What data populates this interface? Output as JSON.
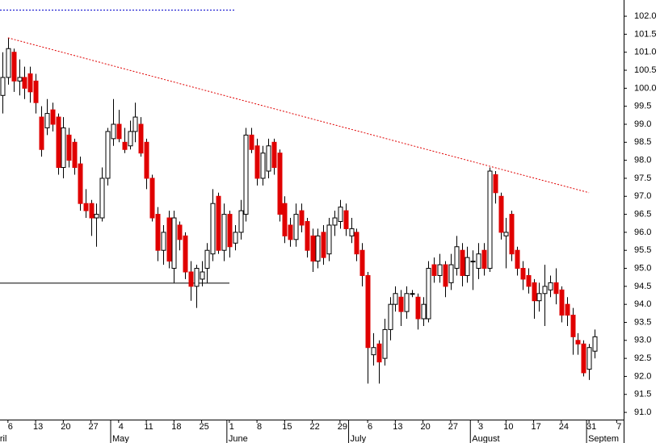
{
  "chart_data": {
    "type": "candlestick",
    "ylim": [
      90.8,
      102.45
    ],
    "yticks": [
      {
        "value": 91,
        "label": "91.0"
      },
      {
        "value": 91.5,
        "label": "91.5"
      },
      {
        "value": 92,
        "label": "92.0"
      },
      {
        "value": 92.5,
        "label": "92.5"
      },
      {
        "value": 93,
        "label": "93.0"
      },
      {
        "value": 93.5,
        "label": "93.5"
      },
      {
        "value": 94,
        "label": "94.0"
      },
      {
        "value": 94.5,
        "label": "94.5"
      },
      {
        "value": 95,
        "label": "95.0"
      },
      {
        "value": 95.5,
        "label": "95.5"
      },
      {
        "value": 96,
        "label": "96.0"
      },
      {
        "value": 96.5,
        "label": "96.5"
      },
      {
        "value": 97,
        "label": "97.0"
      },
      {
        "value": 97.5,
        "label": "97.5"
      },
      {
        "value": 98,
        "label": "98.0"
      },
      {
        "value": 98.5,
        "label": "98.5"
      },
      {
        "value": 99,
        "label": "99.0"
      },
      {
        "value": 99.5,
        "label": "99.5"
      },
      {
        "value": 100,
        "label": "100.0"
      },
      {
        "value": 100.5,
        "label": "100.5"
      },
      {
        "value": 101,
        "label": "101.0"
      },
      {
        "value": 101.5,
        "label": "101.5"
      },
      {
        "value": 102,
        "label": "102.0"
      }
    ],
    "categories": [
      null,
      "6",
      null,
      null,
      null,
      null,
      "13",
      null,
      null,
      null,
      null,
      "20",
      null,
      null,
      null,
      null,
      "27",
      null,
      null,
      null,
      null,
      "4",
      null,
      null,
      null,
      null,
      "11",
      null,
      null,
      null,
      null,
      "18",
      null,
      null,
      null,
      null,
      "25",
      null,
      null,
      null,
      null,
      "1",
      null,
      null,
      null,
      null,
      "8",
      null,
      null,
      null,
      null,
      "15",
      null,
      null,
      null,
      null,
      "22",
      null,
      null,
      null,
      null,
      "29",
      null,
      null,
      null,
      null,
      "6",
      null,
      null,
      null,
      null,
      "13",
      null,
      null,
      null,
      null,
      "20",
      null,
      null,
      null,
      null,
      "27",
      null,
      null,
      null,
      null,
      "3",
      null,
      null,
      null,
      null,
      "10",
      null,
      null,
      null,
      null,
      "17",
      null,
      null,
      null,
      null,
      "24",
      null,
      null,
      null,
      null,
      "31",
      null,
      null,
      null,
      null,
      "7"
    ],
    "months": [
      {
        "index": -1.2,
        "label": "pril"
      },
      {
        "index": 20,
        "label": "May"
      },
      {
        "index": 41,
        "label": "June"
      },
      {
        "index": 63,
        "label": "July"
      },
      {
        "index": 85,
        "label": "August"
      },
      {
        "index": 106,
        "label": "Septem"
      }
    ],
    "up_color": "#ffffff",
    "down_color": "#e00000",
    "ohlc": [
      [
        99.8,
        101.0,
        99.3,
        100.3
      ],
      [
        100.3,
        101.4,
        100.1,
        101.1
      ],
      [
        101.0,
        101.1,
        99.9,
        100.2
      ],
      [
        100.2,
        100.8,
        99.8,
        100.3
      ],
      [
        100.3,
        100.6,
        99.7,
        100.0
      ],
      [
        100.4,
        100.6,
        99.6,
        99.9
      ],
      [
        100.2,
        100.4,
        99.3,
        99.6
      ],
      [
        99.2,
        99.5,
        98.1,
        98.3
      ],
      [
        98.9,
        99.7,
        98.7,
        99.3
      ],
      [
        99.4,
        99.6,
        98.8,
        99.0
      ],
      [
        99.2,
        99.3,
        97.6,
        97.8
      ],
      [
        97.8,
        99.2,
        97.5,
        98.9
      ],
      [
        98.7,
        98.9,
        97.8,
        98.0
      ],
      [
        98.5,
        98.6,
        97.6,
        97.8
      ],
      [
        97.9,
        98.1,
        96.6,
        96.8
      ],
      [
        96.8,
        97.2,
        96.4,
        96.6
      ],
      [
        96.8,
        96.9,
        95.9,
        96.4
      ],
      [
        96.4,
        96.8,
        95.6,
        96.5
      ],
      [
        96.4,
        97.8,
        96.3,
        97.5
      ],
      [
        97.5,
        98.9,
        97.3,
        98.8
      ],
      [
        98.6,
        99.7,
        98.4,
        99.0
      ],
      [
        99.0,
        99.4,
        98.5,
        98.6
      ],
      [
        98.5,
        98.9,
        98.2,
        98.3
      ],
      [
        98.4,
        99.1,
        98.3,
        98.8
      ],
      [
        98.8,
        99.6,
        98.5,
        99.2
      ],
      [
        99.0,
        99.2,
        98.1,
        98.2
      ],
      [
        98.5,
        98.6,
        97.2,
        97.5
      ],
      [
        97.5,
        97.6,
        96.3,
        96.4
      ],
      [
        96.5,
        96.7,
        95.2,
        95.5
      ],
      [
        95.5,
        96.2,
        95.1,
        96.0
      ],
      [
        96.4,
        96.6,
        95.0,
        95.2
      ],
      [
        95.0,
        96.6,
        94.6,
        96.4
      ],
      [
        96.2,
        96.3,
        95.5,
        95.8
      ],
      [
        95.9,
        96.0,
        94.7,
        94.9
      ],
      [
        94.9,
        95.2,
        94.1,
        94.5
      ],
      [
        94.5,
        95.1,
        93.9,
        95.0
      ],
      [
        94.7,
        95.2,
        94.5,
        94.9
      ],
      [
        95.0,
        95.7,
        94.6,
        95.5
      ],
      [
        95.4,
        97.2,
        95.2,
        96.8
      ],
      [
        97.0,
        97.1,
        95.4,
        95.5
      ],
      [
        95.5,
        96.8,
        95.2,
        96.5
      ],
      [
        96.5,
        96.6,
        95.3,
        95.6
      ],
      [
        95.7,
        96.2,
        95.5,
        96.0
      ],
      [
        96.0,
        96.9,
        95.8,
        96.6
      ],
      [
        96.5,
        98.9,
        96.3,
        98.7
      ],
      [
        98.7,
        98.9,
        98.2,
        98.3
      ],
      [
        98.4,
        98.6,
        97.3,
        97.5
      ],
      [
        97.5,
        98.4,
        97.3,
        98.2
      ],
      [
        97.7,
        98.6,
        97.5,
        98.4
      ],
      [
        98.5,
        98.6,
        97.6,
        97.8
      ],
      [
        98.2,
        98.3,
        96.3,
        96.5
      ],
      [
        96.8,
        97.0,
        95.7,
        95.9
      ],
      [
        96.2,
        96.4,
        95.6,
        95.8
      ],
      [
        95.8,
        96.8,
        95.6,
        96.5
      ],
      [
        96.6,
        96.8,
        96.0,
        96.2
      ],
      [
        96.3,
        96.4,
        95.3,
        95.5
      ],
      [
        95.9,
        96.1,
        94.9,
        95.2
      ],
      [
        95.2,
        96.1,
        95.0,
        95.9
      ],
      [
        96.0,
        96.2,
        95.1,
        95.3
      ],
      [
        95.4,
        96.4,
        95.2,
        96.2
      ],
      [
        96.2,
        96.6,
        95.9,
        96.4
      ],
      [
        96.3,
        96.9,
        96.1,
        96.7
      ],
      [
        96.6,
        96.8,
        95.9,
        96.1
      ],
      [
        95.9,
        96.4,
        95.7,
        96.1
      ],
      [
        96.0,
        96.1,
        95.2,
        95.4
      ],
      [
        95.5,
        95.7,
        94.5,
        94.8
      ],
      [
        94.8,
        94.9,
        91.8,
        92.8
      ],
      [
        92.6,
        93.2,
        92.3,
        92.8
      ],
      [
        92.9,
        93.0,
        91.8,
        92.4
      ],
      [
        92.5,
        93.6,
        92.3,
        93.3
      ],
      [
        93.3,
        94.2,
        93.0,
        94.0
      ],
      [
        94.0,
        94.5,
        93.8,
        94.3
      ],
      [
        94.2,
        94.4,
        93.4,
        93.8
      ],
      [
        93.8,
        94.5,
        93.6,
        94.3
      ],
      [
        94.3,
        94.4,
        94.2,
        94.3
      ],
      [
        94.2,
        94.3,
        93.3,
        93.6
      ],
      [
        93.6,
        94.2,
        93.4,
        94.0
      ],
      [
        93.6,
        95.2,
        93.5,
        95.0
      ],
      [
        95.1,
        95.3,
        94.6,
        94.8
      ],
      [
        94.8,
        95.4,
        94.6,
        95.1
      ],
      [
        95.1,
        95.2,
        94.2,
        94.5
      ],
      [
        94.6,
        95.4,
        94.4,
        95.1
      ],
      [
        95.0,
        95.9,
        94.8,
        95.6
      ],
      [
        95.5,
        95.7,
        94.5,
        94.8
      ],
      [
        94.8,
        95.6,
        94.6,
        95.3
      ],
      [
        95.2,
        95.5,
        94.4,
        95.2
      ],
      [
        95.0,
        95.7,
        94.7,
        95.4
      ],
      [
        95.5,
        95.7,
        94.8,
        95.0
      ],
      [
        95.0,
        97.8,
        94.9,
        97.7
      ],
      [
        97.6,
        97.7,
        96.8,
        97.1
      ],
      [
        97.0,
        97.1,
        95.8,
        96.0
      ],
      [
        95.9,
        96.4,
        95.0,
        96.0
      ],
      [
        96.5,
        96.6,
        95.2,
        95.4
      ],
      [
        95.5,
        95.6,
        94.8,
        95.0
      ],
      [
        95.0,
        95.2,
        94.4,
        94.7
      ],
      [
        94.8,
        95.0,
        94.3,
        94.5
      ],
      [
        94.6,
        94.7,
        93.6,
        94.1
      ],
      [
        94.1,
        94.6,
        93.8,
        94.3
      ],
      [
        94.3,
        95.1,
        93.4,
        94.5
      ],
      [
        94.4,
        94.8,
        94.2,
        94.6
      ],
      [
        94.6,
        95.0,
        94.0,
        94.3
      ],
      [
        94.4,
        94.5,
        93.5,
        93.7
      ],
      [
        94.0,
        94.2,
        93.4,
        93.7
      ],
      [
        93.7,
        93.9,
        92.6,
        93.1
      ],
      [
        93.0,
        93.2,
        92.6,
        92.9
      ],
      [
        92.9,
        93.0,
        92.0,
        92.1
      ],
      [
        92.2,
        92.9,
        91.9,
        92.8
      ],
      [
        92.7,
        93.3,
        92.5,
        93.1
      ],
      null,
      null,
      null,
      null
    ],
    "trendline": {
      "from": [
        1,
        101.4
      ],
      "to": [
        106,
        97.1
      ],
      "color": "#e00000"
    },
    "hlines": [
      {
        "value": 94.6,
        "color": "#000000",
        "dashed": false
      },
      {
        "value": 102.18,
        "color": "#0000cc",
        "dashed": true
      }
    ]
  }
}
